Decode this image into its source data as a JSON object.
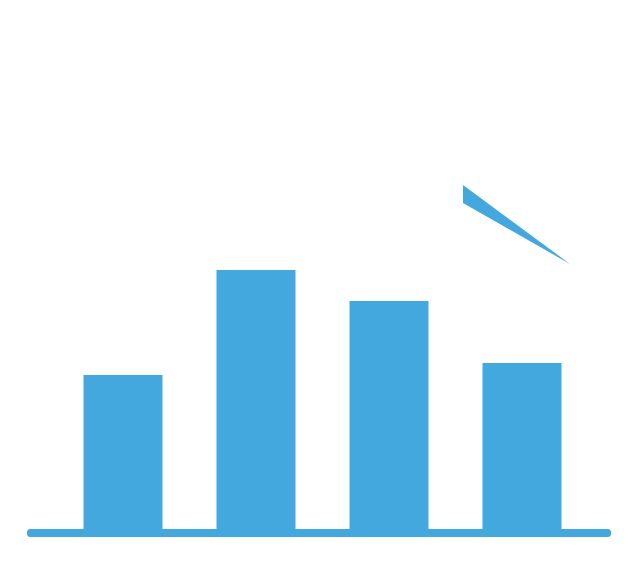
{
  "chart_data": {
    "type": "bar",
    "categories": [
      null,
      null,
      null,
      null
    ],
    "values": [
      156,
      261,
      230,
      168
    ],
    "color": "#42a8de",
    "ylim": [
      0,
      300
    ]
  }
}
